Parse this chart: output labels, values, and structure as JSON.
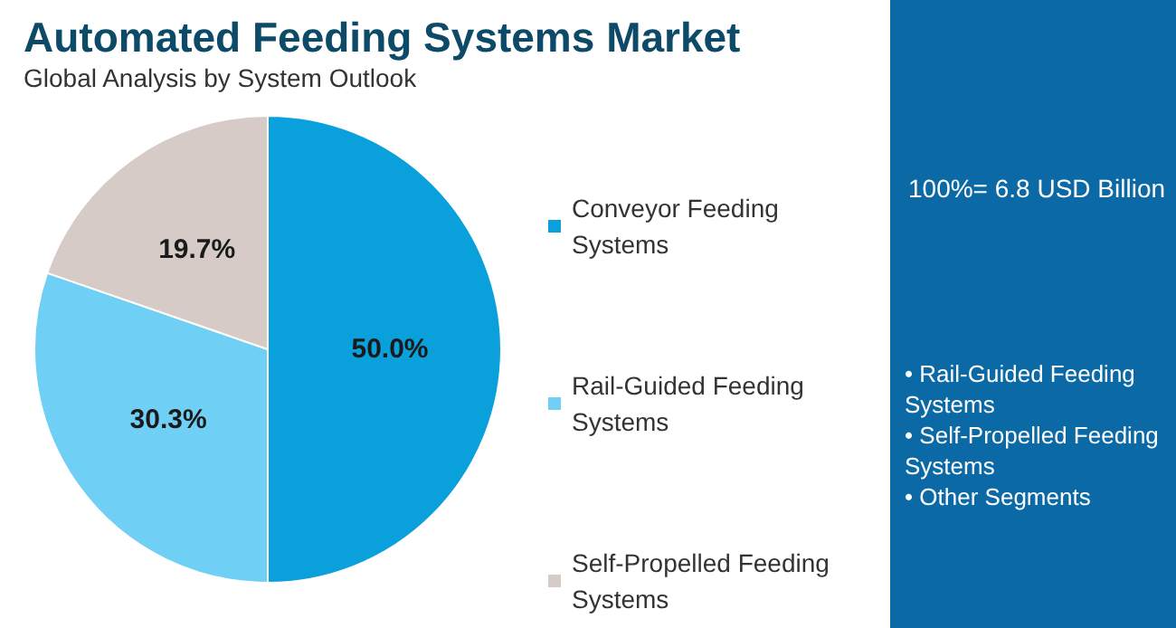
{
  "chart_data": {
    "type": "pie",
    "title": "Automated Feeding Systems Market",
    "subtitle": "Global Analysis by System Outlook",
    "categories": [
      "Conveyor Feeding Systems",
      "Rail-Guided Feeding Systems",
      "Self-Propelled Feeding Systems"
    ],
    "values": [
      50.0,
      30.3,
      19.7
    ],
    "colors": [
      "#0aa0db",
      "#6fcff5",
      "#d6cbc6"
    ],
    "value_labels": [
      "50.0%",
      "30.3%",
      "19.7%"
    ],
    "legend": "right",
    "annotations": [
      "100%= 6.8 USD Billion",
      "• Rail-Guided Feeding Systems",
      "• Self-Propelled Feeding Systems",
      "• Other Segments"
    ]
  }
}
